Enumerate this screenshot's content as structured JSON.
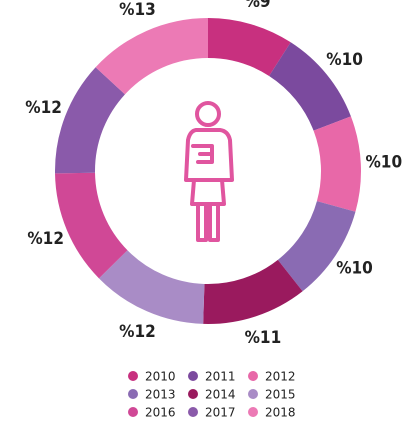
{
  "chart_data": {
    "type": "donut",
    "categories": [
      "2010",
      "2011",
      "2012",
      "2013",
      "2014",
      "2015",
      "2016",
      "2017",
      "2018"
    ],
    "values": [
      9,
      10,
      10,
      10,
      11,
      12,
      12,
      12,
      13
    ],
    "value_labels": [
      "%9",
      "%10",
      "%10",
      "%10",
      "%11",
      "%12",
      "%12",
      "%12",
      "%13"
    ],
    "colors": [
      "#c8307f",
      "#7b4a9e",
      "#e868a8",
      "#8a6bb3",
      "#9a1a5e",
      "#a98cc6",
      "#d04896",
      "#8a5aaa",
      "#ec7ab5"
    ],
    "legend": "bottom"
  }
}
